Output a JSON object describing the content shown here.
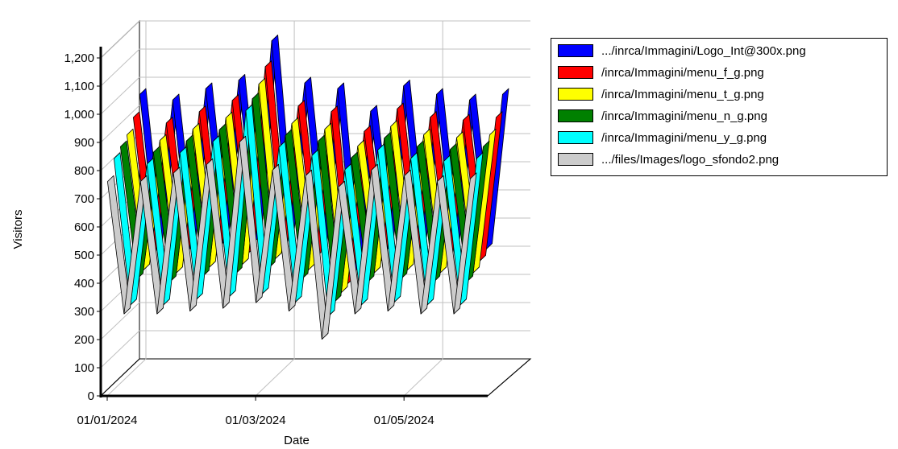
{
  "chart_data": {
    "type": "line",
    "style": "3d-ribbon",
    "title": "",
    "xlabel": "Date",
    "ylabel": "Visitors",
    "ylim": [
      0,
      1200
    ],
    "yticks": [
      "0",
      "100",
      "200",
      "300",
      "400",
      "500",
      "600",
      "700",
      "800",
      "900",
      "1,000",
      "1,100",
      "1,200"
    ],
    "xticks": [
      "01/01/2024",
      "01/03/2024",
      "01/05/2024"
    ],
    "grid": true,
    "legend_position": "right",
    "x": [
      "01/01/2024",
      "08/01/2024",
      "15/01/2024",
      "22/01/2024",
      "29/01/2024",
      "05/02/2024",
      "12/02/2024",
      "19/02/2024",
      "26/02/2024",
      "04/03/2024",
      "11/03/2024",
      "18/03/2024",
      "25/03/2024",
      "01/04/2024",
      "08/04/2024",
      "15/04/2024",
      "22/04/2024",
      "29/04/2024",
      "06/05/2024",
      "13/05/2024",
      "20/05/2024",
      "27/05/2024",
      "03/06/2024"
    ],
    "series": [
      {
        "name": ".../inrca/Immagini/Logo_Int@300x.png",
        "color": "#0000ff",
        "values": [
          960,
          420,
          940,
          410,
          980,
          430,
          1010,
          440,
          1150,
          460,
          1000,
          420,
          980,
          330,
          900,
          410,
          990,
          420,
          960,
          410,
          940,
          410,
          960
        ]
      },
      {
        "name": "/inrca/Immagini/menu_f_g.png",
        "color": "#ff0000",
        "values": [
          900,
          400,
          880,
          390,
          920,
          410,
          960,
          420,
          1080,
          440,
          940,
          400,
          920,
          310,
          850,
          390,
          930,
          400,
          900,
          390,
          890,
          390,
          900
        ]
      },
      {
        "name": "/inrca/Immagini/menu_t_g.png",
        "color": "#ffff00",
        "values": [
          860,
          380,
          840,
          370,
          880,
          390,
          920,
          400,
          1040,
          420,
          900,
          380,
          880,
          300,
          820,
          370,
          890,
          380,
          860,
          370,
          850,
          370,
          860
        ]
      },
      {
        "name": "/inrca/Immagini/menu_n_g.png",
        "color": "#008000",
        "values": [
          840,
          370,
          820,
          360,
          860,
          380,
          900,
          390,
          1010,
          410,
          880,
          370,
          860,
          290,
          800,
          360,
          870,
          370,
          840,
          360,
          830,
          360,
          840
        ]
      },
      {
        "name": "/inrca/Immagini/menu_y_g.png",
        "color": "#00ffff",
        "values": [
          820,
          300,
          800,
          300,
          840,
          320,
          880,
          330,
          990,
          340,
          860,
          310,
          830,
          260,
          780,
          300,
          850,
          310,
          820,
          300,
          810,
          300,
          820
        ]
      },
      {
        "name": ".../files/Images/logo_sfondo2.png",
        "color": "#cccccc",
        "values": [
          760,
          290,
          760,
          290,
          790,
          300,
          820,
          310,
          900,
          330,
          800,
          300,
          780,
          200,
          740,
          290,
          800,
          300,
          780,
          290,
          760,
          290,
          770
        ]
      }
    ]
  }
}
